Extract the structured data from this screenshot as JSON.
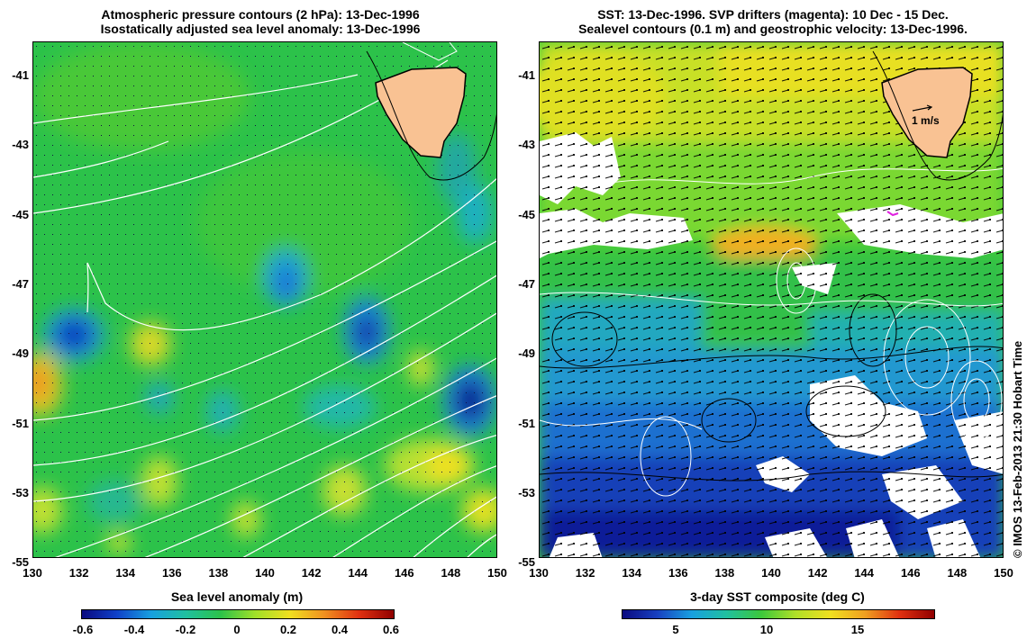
{
  "left_panel": {
    "title_line1": "Atmospheric pressure contours (2 hPa): 13-Dec-1996",
    "title_line2": "Isostatically adjusted sea level anomaly: 13-Dec-1996",
    "colorbar_title": "Sea level anomaly (m)",
    "colorbar_ticks": [
      "-0.6",
      "-0.4",
      "-0.2",
      "0",
      "0.2",
      "0.4",
      "0.6"
    ]
  },
  "right_panel": {
    "title_line1": "SST: 13-Dec-1996. SVP drifters (magenta): 10 Dec - 15 Dec.",
    "title_line2": "Sealevel contours (0.1 m) and geostrophic velocity: 13-Dec-1996.",
    "colorbar_title": "3-day SST composite (deg C)",
    "colorbar_ticks": [
      "5",
      "10",
      "15"
    ],
    "velocity_scale_label": "1 m/s"
  },
  "axes": {
    "lat_ticks": [
      "-41",
      "-43",
      "-45",
      "-47",
      "-49",
      "-51",
      "-53",
      "-55"
    ],
    "lon_ticks": [
      "130",
      "132",
      "134",
      "136",
      "138",
      "140",
      "142",
      "144",
      "146",
      "148",
      "150"
    ]
  },
  "credit": "© IMOS 13-Feb-2013 21:30 Hobart Time",
  "colors": {
    "land": "#f9c293",
    "ocean_anomaly_zero": "#28c447",
    "cold": "#1428a0",
    "warm": "#f0d020",
    "contour": "#ffffff",
    "cloud_mask": "#ffffff"
  }
}
